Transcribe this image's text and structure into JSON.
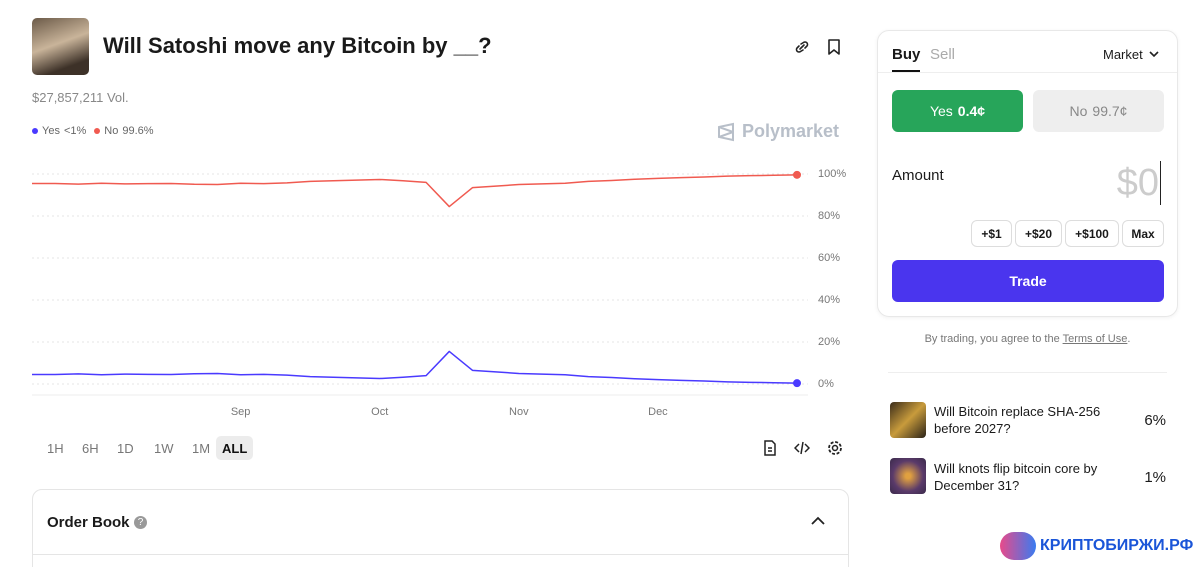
{
  "header": {
    "title": "Will Satoshi move any Bitcoin by __?",
    "volume": "$27,857,211 Vol."
  },
  "brand": "Polymarket",
  "chart_data": {
    "type": "line",
    "categories": [
      null,
      null,
      null,
      null,
      null,
      null,
      null,
      null,
      null,
      "Sep",
      null,
      null,
      null,
      null,
      null,
      "Oct",
      null,
      null,
      null,
      null,
      null,
      "Nov",
      null,
      null,
      null,
      null,
      null,
      "Dec",
      null,
      null,
      null,
      null,
      null,
      null
    ],
    "series": [
      {
        "name": "Yes",
        "legend_value": "<1%",
        "color": "#4a3aff",
        "values": [
          4.5,
          4.5,
          4.8,
          4.4,
          4.7,
          4.6,
          4.5,
          4.9,
          5.0,
          4.4,
          4.6,
          4.2,
          3.5,
          3.2,
          2.9,
          2.6,
          3.2,
          4.0,
          15.5,
          6.5,
          5.8,
          5.0,
          4.7,
          4.4,
          3.5,
          3.1,
          2.5,
          2.1,
          1.7,
          1.4,
          1.0,
          0.8,
          0.6,
          0.4
        ]
      },
      {
        "name": "No",
        "legend_value": "99.6%",
        "color": "#f05a50",
        "values": [
          95.5,
          95.5,
          95.2,
          95.6,
          95.3,
          95.4,
          95.5,
          95.1,
          95.0,
          95.6,
          95.4,
          95.8,
          96.5,
          96.8,
          97.1,
          97.4,
          96.8,
          96.0,
          84.5,
          93.5,
          94.2,
          95.0,
          95.3,
          95.6,
          96.5,
          96.9,
          97.5,
          97.9,
          98.3,
          98.6,
          99.0,
          99.2,
          99.4,
          99.6
        ]
      }
    ],
    "ylim": [
      0,
      100
    ],
    "yticks": [
      {
        "value": 0,
        "label": "0%"
      },
      {
        "value": 20,
        "label": "20%"
      },
      {
        "value": 40,
        "label": "40%"
      },
      {
        "value": 60,
        "label": "60%"
      },
      {
        "value": 80,
        "label": "80%"
      },
      {
        "value": 100,
        "label": "100%"
      }
    ],
    "grid": true
  },
  "ranges": [
    "1H",
    "6H",
    "1D",
    "1W",
    "1M",
    "ALL"
  ],
  "active_range": "ALL",
  "order_book": "Order Book",
  "trade": {
    "tabs": [
      "Buy",
      "Sell"
    ],
    "order_type": "Market",
    "outcomes": [
      {
        "name": "Yes",
        "price": "0.4¢"
      },
      {
        "name": "No",
        "price": "99.7¢"
      }
    ],
    "amount_label": "Amount",
    "amount": "$0",
    "quick": [
      "+$1",
      "+$20",
      "+$100",
      "Max"
    ],
    "button": "Trade",
    "terms": [
      "By trading, you agree to the",
      "Terms of Use",
      "."
    ]
  },
  "related": [
    {
      "title": "Will Bitcoin replace SHA-256 before 2027?",
      "pct": "6%"
    },
    {
      "title": "Will knots flip bitcoin core by December 31?",
      "pct": "1%"
    }
  ],
  "watermark": "КРИПТОБИРЖИ.РФ"
}
